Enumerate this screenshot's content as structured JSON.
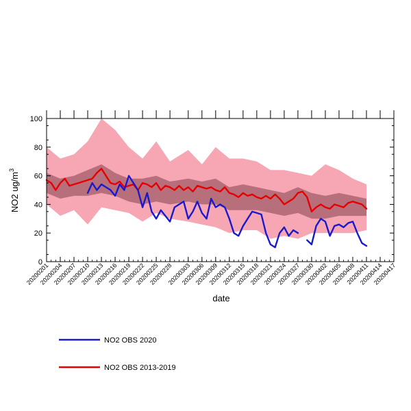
{
  "chart_data": {
    "type": "line",
    "xlabel": "date",
    "ylabel": "NO2  ug/m",
    "ylabel_sup": "3",
    "ylim": [
      0,
      100
    ],
    "yticks": [
      0,
      20,
      40,
      60,
      80,
      100
    ],
    "xlim": [
      "2020-02-01",
      "2020-04-17"
    ],
    "xtick_labels": [
      "20200201",
      "20200204",
      "20200207",
      "20200210",
      "20200213",
      "20200216",
      "20200219",
      "20200222",
      "20200225",
      "20200228",
      "20200303",
      "20200306",
      "20200309",
      "20200312",
      "20200315",
      "20200318",
      "20200321",
      "20200324",
      "20200327",
      "20200330",
      "20200402",
      "20200405",
      "20200408",
      "20200411",
      "20200414",
      "20200417"
    ],
    "colors": {
      "obs2020": "#1a1acc",
      "obs2013_2019": "#e60000",
      "band_outer": "#f7a6b4",
      "band_inner": "#b86f7c"
    },
    "bands": {
      "x": [
        "2020-02-01",
        "2020-02-04",
        "2020-02-07",
        "2020-02-10",
        "2020-02-13",
        "2020-02-16",
        "2020-02-19",
        "2020-02-22",
        "2020-02-25",
        "2020-02-28",
        "2020-03-03",
        "2020-03-06",
        "2020-03-09",
        "2020-03-12",
        "2020-03-15",
        "2020-03-18",
        "2020-03-21",
        "2020-03-24",
        "2020-03-27",
        "2020-03-30",
        "2020-04-02",
        "2020-04-05",
        "2020-04-08",
        "2020-04-11"
      ],
      "outer_upper": [
        80,
        72,
        75,
        84,
        100,
        92,
        80,
        72,
        84,
        70,
        78,
        68,
        80,
        72,
        72,
        70,
        64,
        64,
        62,
        60,
        68,
        64,
        58,
        54
      ],
      "outer_lower": [
        40,
        32,
        36,
        26,
        38,
        36,
        34,
        28,
        34,
        30,
        28,
        26,
        24,
        20,
        22,
        22,
        16,
        18,
        16,
        20,
        20,
        20,
        20,
        22
      ],
      "inner_upper": [
        62,
        58,
        60,
        64,
        68,
        62,
        58,
        58,
        60,
        56,
        58,
        56,
        58,
        52,
        54,
        52,
        50,
        48,
        52,
        48,
        46,
        48,
        46,
        44
      ],
      "inner_lower": [
        48,
        44,
        46,
        46,
        48,
        46,
        42,
        40,
        42,
        40,
        42,
        40,
        40,
        36,
        36,
        36,
        34,
        32,
        34,
        30,
        30,
        32,
        32,
        32
      ]
    },
    "series": [
      {
        "name": "NO2 OBS 2013-2019",
        "color": "#e60000",
        "x": [
          "2020-02-01",
          "2020-02-02",
          "2020-02-03",
          "2020-02-04",
          "2020-02-05",
          "2020-02-06",
          "2020-02-07",
          "2020-02-08",
          "2020-02-09",
          "2020-02-10",
          "2020-02-11",
          "2020-02-12",
          "2020-02-13",
          "2020-02-14",
          "2020-02-15",
          "2020-02-16",
          "2020-02-17",
          "2020-02-18",
          "2020-02-19",
          "2020-02-20",
          "2020-02-21",
          "2020-02-22",
          "2020-02-23",
          "2020-02-24",
          "2020-02-25",
          "2020-02-26",
          "2020-02-27",
          "2020-02-28",
          "2020-02-29",
          "2020-03-01",
          "2020-03-02",
          "2020-03-03",
          "2020-03-04",
          "2020-03-05",
          "2020-03-06",
          "2020-03-07",
          "2020-03-08",
          "2020-03-09",
          "2020-03-10",
          "2020-03-11",
          "2020-03-12",
          "2020-03-13",
          "2020-03-14",
          "2020-03-15",
          "2020-03-16",
          "2020-03-17",
          "2020-03-18",
          "2020-03-19",
          "2020-03-20",
          "2020-03-21",
          "2020-03-22",
          "2020-03-23",
          "2020-03-24",
          "2020-03-25",
          "2020-03-26",
          "2020-03-27",
          "2020-03-28",
          "2020-03-29",
          "2020-03-30",
          "2020-03-31",
          "2020-04-01",
          "2020-04-02",
          "2020-04-03",
          "2020-04-04",
          "2020-04-05",
          "2020-04-06",
          "2020-04-07",
          "2020-04-08",
          "2020-04-09",
          "2020-04-10",
          "2020-04-11"
        ],
        "values": [
          57,
          55,
          50,
          55,
          58,
          53,
          54,
          55,
          56,
          57,
          58,
          62,
          65,
          60,
          55,
          54,
          56,
          52,
          53,
          54,
          50,
          55,
          54,
          52,
          55,
          50,
          53,
          52,
          50,
          53,
          50,
          52,
          49,
          53,
          52,
          51,
          52,
          50,
          49,
          52,
          48,
          47,
          45,
          48,
          46,
          47,
          45,
          44,
          46,
          44,
          47,
          44,
          40,
          42,
          44,
          48,
          49,
          45,
          35,
          38,
          40,
          38,
          37,
          40,
          39,
          38,
          41,
          42,
          41,
          40,
          37
        ]
      },
      {
        "name": "NO2 OBS 2020",
        "color": "#1a1acc",
        "x": [
          "2020-02-10",
          "2020-02-11",
          "2020-02-12",
          "2020-02-13",
          "2020-02-14",
          "2020-02-15",
          "2020-02-16",
          "2020-02-17",
          "2020-02-18",
          "2020-02-19",
          "2020-02-20",
          "2020-02-21",
          "2020-02-22",
          "2020-02-23",
          "2020-02-24",
          "2020-02-25",
          "2020-02-26",
          "2020-02-27",
          "2020-02-28",
          "2020-02-29",
          "2020-03-01",
          "2020-03-02",
          "2020-03-03",
          "2020-03-04",
          "2020-03-05",
          "2020-03-06",
          "2020-03-07",
          "2020-03-08",
          "2020-03-09",
          "2020-03-10",
          "2020-03-11",
          "2020-03-12",
          "2020-03-13",
          "2020-03-14",
          "2020-03-15",
          "2020-03-16",
          "2020-03-17",
          "2020-03-18",
          "2020-03-19",
          "2020-03-20",
          "2020-03-21",
          "2020-03-22",
          "2020-03-23",
          "2020-03-24",
          "2020-03-25",
          "2020-03-26",
          "2020-03-27",
          "2020-03-28",
          "2020-03-29",
          "2020-03-30",
          "2020-03-31",
          "2020-04-01",
          "2020-04-02",
          "2020-04-03",
          "2020-04-04",
          "2020-04-05",
          "2020-04-06",
          "2020-04-07",
          "2020-04-08",
          "2020-04-09",
          "2020-04-10",
          "2020-04-11"
        ],
        "values": [
          48,
          55,
          50,
          54,
          52,
          50,
          46,
          54,
          50,
          60,
          55,
          50,
          38,
          48,
          35,
          30,
          36,
          32,
          28,
          38,
          40,
          42,
          30,
          35,
          42,
          34,
          30,
          44,
          38,
          40,
          38,
          30,
          20,
          18,
          25,
          30,
          35,
          34,
          33,
          20,
          12,
          10,
          20,
          24,
          18,
          22,
          20,
          null,
          15,
          12,
          25,
          30,
          28,
          18,
          25,
          26,
          24,
          27,
          28,
          20,
          13,
          11
        ]
      }
    ],
    "legend": [
      {
        "label": "NO2 OBS 2020",
        "color": "#1a1acc"
      },
      {
        "label": "NO2 OBS 2013-2019",
        "color": "#e60000"
      }
    ]
  }
}
